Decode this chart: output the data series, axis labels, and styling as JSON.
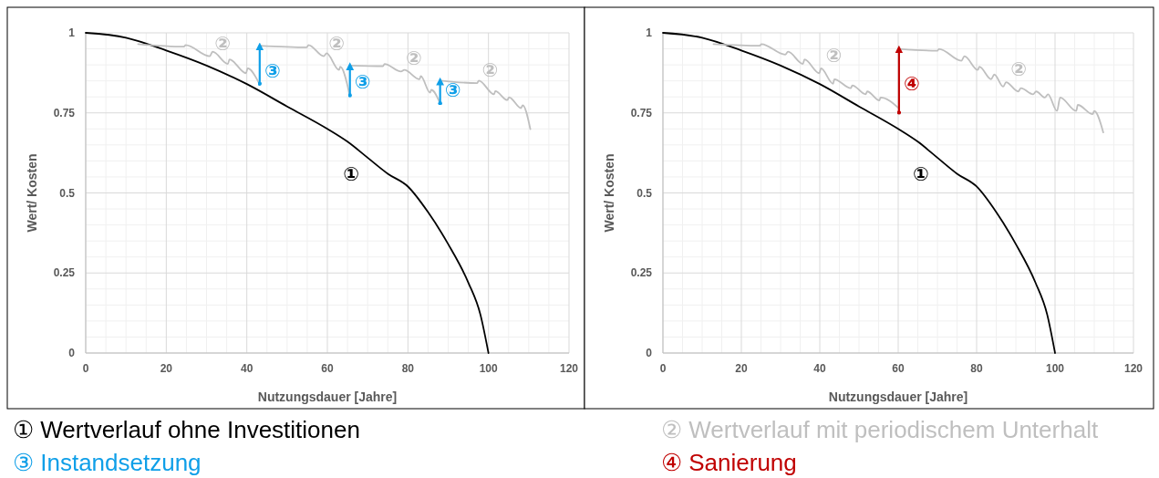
{
  "chart_data": [
    {
      "type": "line",
      "xlabel": "Nutzungsdauer [Jahre]",
      "ylabel": "Wert/ Kosten",
      "xlim": [
        0,
        120
      ],
      "xticks": [
        0,
        20,
        40,
        60,
        80,
        100,
        120
      ],
      "ylim": [
        0,
        1
      ],
      "yticks": [
        0,
        0.25,
        0.5,
        0.75,
        1
      ],
      "grid": true,
      "legend": "bottom",
      "series": [
        {
          "name": "① Wertverlauf ohne Investitionen",
          "color": "#000000",
          "x": [
            0,
            10,
            20,
            30,
            40,
            50,
            60,
            65,
            70,
            75,
            80,
            85,
            90,
            95,
            98,
            100
          ],
          "values": [
            1,
            0.985,
            0.945,
            0.898,
            0.84,
            0.77,
            0.7,
            0.66,
            0.61,
            0.56,
            0.52,
            0.44,
            0.34,
            0.22,
            0.12,
            0
          ]
        },
        {
          "color": "#bfbfbf",
          "x": [
            13,
            24.4,
            24.8,
            30.8,
            31.5,
            35.3,
            35.7,
            39.8,
            40.2,
            42.9
          ],
          "values": [
            0.965,
            0.957,
            0.962,
            0.927,
            0.941,
            0.903,
            0.917,
            0.874,
            0.889,
            0.846
          ]
        },
        {
          "color": "#bfbfbf",
          "x": [
            43.2,
            54.9,
            55.3,
            59.1,
            59.8,
            62.9,
            63.2,
            65.5
          ],
          "values": [
            0.96,
            0.955,
            0.962,
            0.927,
            0.936,
            0.884,
            0.894,
            0.808
          ]
        },
        {
          "color": "#bfbfbf",
          "x": [
            65.6,
            73.8,
            74.2,
            78.3,
            79.1,
            82.9,
            83.2,
            85.5,
            85.8,
            88
          ],
          "values": [
            0.898,
            0.896,
            0.903,
            0.879,
            0.884,
            0.855,
            0.865,
            0.813,
            0.822,
            0.78
          ]
        },
        {
          "color": "#bfbfbf",
          "x": [
            88.1,
            97.2,
            97.6,
            101.4,
            101.7,
            104.7,
            105.1,
            108.1,
            108.5,
            110.4
          ],
          "values": [
            0.851,
            0.843,
            0.851,
            0.808,
            0.818,
            0.79,
            0.799,
            0.765,
            0.774,
            0.699
          ]
        },
        {
          "name": "③ Instandsetzung",
          "color": "#0f9fe8",
          "x": [
            43.2,
            43.2
          ],
          "values": [
            0.841,
            0.96
          ]
        },
        {
          "color": "#0f9fe8",
          "x": [
            65.6,
            65.6
          ],
          "values": [
            0.805,
            0.898
          ]
        },
        {
          "color": "#0f9fe8",
          "x": [
            88,
            88
          ],
          "values": [
            0.78,
            0.851
          ]
        }
      ],
      "annotations": [
        {
          "text": "①",
          "x": 70,
          "y": 0.61
        },
        {
          "text": "②",
          "x": 30.8,
          "y": 0.927
        },
        {
          "text": "②",
          "x": 59.1,
          "y": 0.927
        },
        {
          "text": "②",
          "x": 78.3,
          "y": 0.879
        },
        {
          "text": "②",
          "x": 97.2,
          "y": 0.843
        },
        {
          "text": "③",
          "x": 43.2,
          "y": 0.841
        },
        {
          "text": "③",
          "x": 65.6,
          "y": 0.805
        },
        {
          "text": "③",
          "x": 88,
          "y": 0.78
        }
      ]
    },
    {
      "type": "line",
      "xlabel": "Nutzungsdauer [Jahre]",
      "ylabel": "Wert/ Kosten",
      "xlim": [
        0,
        120
      ],
      "xticks": [
        0,
        20,
        40,
        60,
        80,
        100,
        120
      ],
      "ylim": [
        0,
        1
      ],
      "yticks": [
        0,
        0.25,
        0.5,
        0.75,
        1
      ],
      "grid": true,
      "legend": "bottom",
      "series": [
        {
          "color": "#000000",
          "x": [
            0,
            10,
            20,
            30,
            40,
            50,
            60,
            65,
            70,
            75,
            80,
            85,
            90,
            95,
            98,
            100
          ],
          "values": [
            1,
            0.985,
            0.945,
            0.898,
            0.84,
            0.77,
            0.7,
            0.66,
            0.61,
            0.56,
            0.52,
            0.44,
            0.34,
            0.22,
            0.12,
            0
          ]
        },
        {
          "name": "② Wertverlauf mit periodischem Unterhalt",
          "color": "#bfbfbf",
          "x": [
            12.9,
            24.7,
            25.1,
            31.2,
            31.9,
            35.7,
            36.1,
            39.9,
            40.3,
            43.4,
            43.7,
            47.9,
            48.3,
            51.7,
            52.1,
            55.2,
            55.5,
            60.1
          ],
          "values": [
            0.965,
            0.96,
            0.965,
            0.932,
            0.941,
            0.903,
            0.917,
            0.874,
            0.889,
            0.841,
            0.855,
            0.827,
            0.836,
            0.808,
            0.817,
            0.789,
            0.798,
            0.765
          ]
        },
        {
          "color": "#bfbfbf",
          "x": [
            60.3,
            70,
            70.4,
            76.1,
            76.9,
            80.3,
            80.7,
            83.7,
            84.5,
            86.8,
            87.5,
            90.6,
            91.3,
            94.4,
            95.2,
            97.4,
            98.2,
            100.5,
            101.3,
            105.4,
            105.8,
            109.6,
            110,
            112.3
          ],
          "values": [
            0.95,
            0.944,
            0.95,
            0.913,
            0.927,
            0.884,
            0.894,
            0.855,
            0.87,
            0.832,
            0.846,
            0.817,
            0.827,
            0.808,
            0.817,
            0.798,
            0.808,
            0.756,
            0.798,
            0.756,
            0.775,
            0.746,
            0.756,
            0.689
          ]
        },
        {
          "name": "④ Sanierung",
          "color": "#c00000",
          "x": [
            60.2,
            60.2,
            60.2
          ],
          "values": [
            0.751,
            0.8,
            0.951
          ]
        }
      ],
      "annotations": [
        {
          "text": "①",
          "x": 70,
          "y": 0.61
        },
        {
          "text": "②",
          "x": 40.3,
          "y": 0.889
        },
        {
          "text": "②",
          "x": 87.5,
          "y": 0.846
        },
        {
          "text": "④",
          "x": 60.2,
          "y": 0.8
        }
      ]
    }
  ]
}
